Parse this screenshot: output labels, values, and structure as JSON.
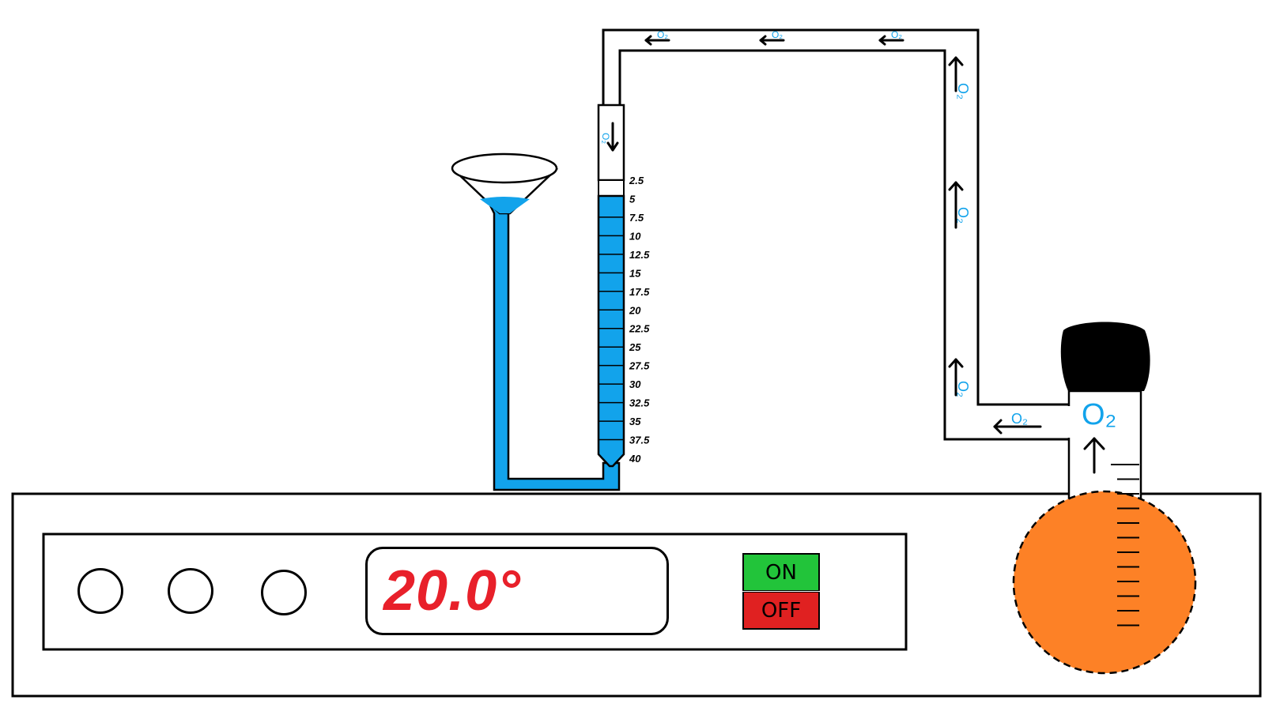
{
  "heater": {
    "temperature_display": "20.0°",
    "on_label": "ON",
    "off_label": "OFF",
    "colors": {
      "display_text": "#e8202a",
      "on": "#22c43a",
      "off": "#e02121"
    }
  },
  "gas_label": "O₂",
  "burette": {
    "scale_labels": [
      "2.5",
      "5",
      "7.5",
      "10",
      "12.5",
      "15",
      "17.5",
      "20",
      "22.5",
      "25",
      "27.5",
      "30",
      "32.5",
      "35",
      "37.5",
      "40"
    ],
    "liquid_level": "5",
    "liquid_color": "#12a3eb"
  },
  "flask": {
    "color": "#fd8126",
    "stopper_color": "#000000"
  }
}
